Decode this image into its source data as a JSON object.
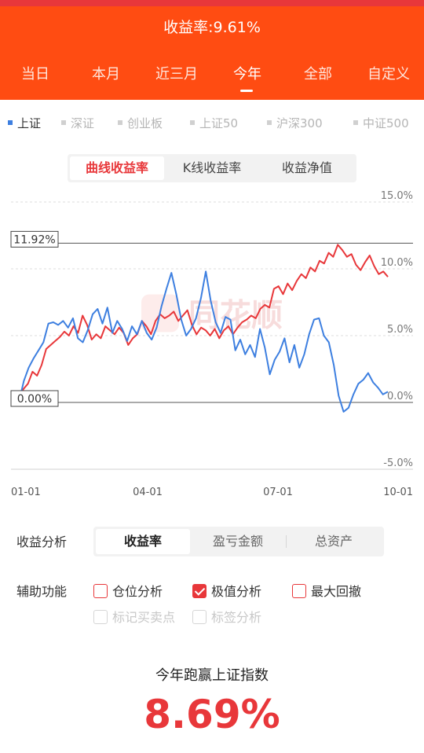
{
  "header": {
    "title": "收益率:9.61%",
    "tabs": [
      "当日",
      "本月",
      "近三月",
      "今年",
      "全部",
      "自定义"
    ],
    "active_tab": "今年"
  },
  "indices": {
    "items": [
      "上证",
      "深证",
      "创业板",
      "上证50",
      "沪深300",
      "中证500"
    ],
    "active": "上证"
  },
  "chart_tabs": {
    "items": [
      "曲线收益率",
      "K线收益率",
      "收益净值"
    ],
    "active": "曲线收益率"
  },
  "chart_data": {
    "type": "line",
    "y_ticks": [
      "15.0%",
      "10.0%",
      "5.0%",
      "0.0%",
      "-5.0%"
    ],
    "ylim": [
      -5,
      15
    ],
    "x_ticks": [
      "01-01",
      "04-01",
      "07-01",
      "10-01"
    ],
    "markers": {
      "max_label": "11.92%",
      "max_value": 11.92,
      "zero_label": "0.00%",
      "zero_value": 0
    },
    "watermark": "同花顺",
    "series": [
      {
        "color": "#e8373a",
        "values": [
          0,
          1.0,
          1.4,
          2.3,
          2.0,
          2.8,
          4.0,
          4.3,
          4.6,
          4.9,
          5.3,
          5.0,
          5.7,
          5.2,
          6.5,
          5.8,
          4.7,
          5.1,
          4.8,
          5.7,
          5.4,
          5.1,
          5.6,
          5.2,
          4.3,
          4.8,
          5.1,
          6.1,
          5.7,
          5.1,
          6.1,
          6.6,
          6.3,
          6.5,
          6.8,
          6.1,
          6.5,
          6.9,
          5.8,
          5.1,
          5.6,
          5.4,
          5.0,
          5.5,
          4.8,
          5.4,
          5.7,
          5.1,
          5.6,
          6.0,
          6.2,
          6.5,
          6.3,
          7.0,
          7.3,
          7.1,
          8.5,
          8.7,
          8.1,
          8.9,
          8.4,
          9.1,
          9.6,
          9.3,
          10.1,
          9.8,
          10.6,
          10.4,
          11.2,
          10.9,
          11.8,
          11.4,
          10.9,
          11.1,
          10.3,
          9.9,
          10.5,
          11.0,
          10.2,
          9.6,
          9.8,
          9.4
        ]
      },
      {
        "color": "#3d7fe0",
        "values": [
          0,
          1.6,
          2.6,
          3.3,
          3.9,
          4.5,
          5.9,
          6.0,
          5.8,
          6.1,
          5.6,
          6.3,
          4.8,
          4.5,
          5.4,
          6.6,
          7.0,
          5.9,
          7.1,
          5.2,
          6.1,
          5.5,
          4.6,
          5.7,
          5.1,
          6.1,
          5.2,
          4.7,
          5.6,
          7.2,
          8.5,
          9.7,
          8.1,
          6.2,
          5.0,
          5.5,
          6.3,
          7.8,
          9.8,
          7.6,
          6.0,
          5.2,
          6.4,
          6.2,
          3.9,
          4.7,
          3.6,
          4.3,
          3.4,
          5.5,
          4.1,
          2.1,
          3.2,
          3.8,
          4.8,
          3.0,
          4.3,
          2.6,
          3.6,
          5.1,
          6.2,
          6.3,
          5.0,
          4.5,
          2.8,
          0.5,
          -0.7,
          -0.4,
          0.6,
          1.4,
          1.7,
          2.2,
          1.5,
          1.1,
          0.6,
          0.8
        ]
      }
    ]
  },
  "analysis": {
    "label": "收益分析",
    "tabs": [
      "收益率",
      "盈亏金额",
      "总资产"
    ],
    "active": "收益率"
  },
  "aux": {
    "label": "辅助功能",
    "options": [
      {
        "label": "仓位分析",
        "checked": false,
        "disabled": false
      },
      {
        "label": "极值分析",
        "checked": true,
        "disabled": false
      },
      {
        "label": "最大回撤",
        "checked": false,
        "disabled": false
      },
      {
        "label": "标记买卖点",
        "checked": false,
        "disabled": true
      },
      {
        "label": "标签分析",
        "checked": false,
        "disabled": true
      }
    ]
  },
  "summary": {
    "title": "今年跑赢上证指数",
    "value": "8.69%"
  },
  "colors": {
    "brand": "#ff4c12",
    "accent_red": "#e8373a",
    "index_blue": "#3d7fe0"
  }
}
